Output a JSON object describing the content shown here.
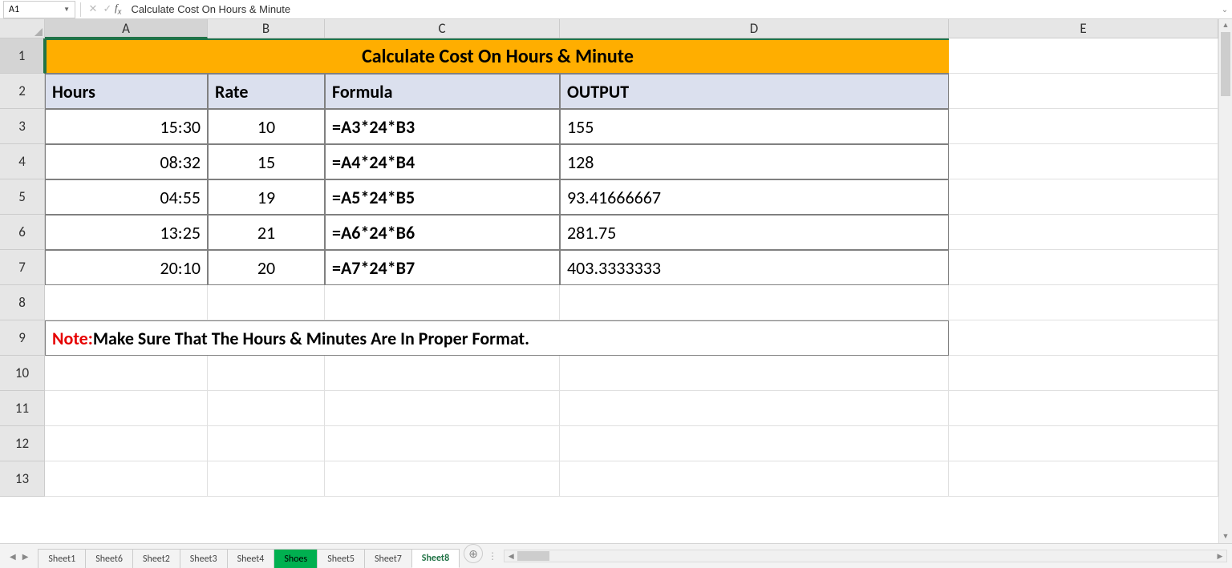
{
  "formula_bar": {
    "name_box": "A1",
    "formula": "Calculate Cost On Hours & Minute"
  },
  "columns": [
    "A",
    "B",
    "C",
    "D",
    "E"
  ],
  "column_widths": {
    "A": 203,
    "B": 146,
    "C": 293,
    "D": 485,
    "E": 336
  },
  "row_headers": [
    "1",
    "2",
    "3",
    "4",
    "5",
    "6",
    "7",
    "8",
    "9",
    "10",
    "11",
    "12",
    "13"
  ],
  "title": "Calculate Cost On Hours & Minute",
  "title_bg": "#ffae00",
  "headers_bg": "#dbe0ee",
  "headers": {
    "a": "Hours",
    "b": "Rate",
    "c": "Formula",
    "d": "OUTPUT"
  },
  "rows": [
    {
      "hours": "15:30",
      "rate": "10",
      "formula": "=A3*24*B3",
      "output": "155"
    },
    {
      "hours": "08:32",
      "rate": "15",
      "formula": "=A4*24*B4",
      "output": "128"
    },
    {
      "hours": "04:55",
      "rate": "19",
      "formula": "=A5*24*B5",
      "output": "93.41666667"
    },
    {
      "hours": "13:25",
      "rate": "21",
      "formula": "=A6*24*B6",
      "output": "281.75"
    },
    {
      "hours": "20:10",
      "rate": "20",
      "formula": "=A7*24*B7",
      "output": "403.3333333"
    }
  ],
  "note": {
    "label": "Note:",
    "text": " Make Sure That The Hours & Minutes Are In Proper Format."
  },
  "sheet_tabs": [
    "Sheet1",
    "Sheet6",
    "Sheet2",
    "Sheet3",
    "Sheet4",
    "Shoes",
    "Sheet5",
    "Sheet7",
    "Sheet8"
  ],
  "active_tab": "Sheet8",
  "highlight_tab": "Shoes",
  "selected_cell": "A1",
  "colors": {
    "grid_border": "#e0e0e0",
    "data_border": "#808080",
    "header_bg": "#e6e6e6",
    "selection": "#217346",
    "note_red": "#e60000",
    "tab_highlight": "#00b050"
  }
}
